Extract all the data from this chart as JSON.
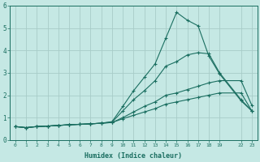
{
  "xlabel": "Humidex (Indice chaleur)",
  "bg_color": "#c5e8e4",
  "grid_color": "#a8ccc8",
  "line_color": "#1a6e60",
  "ylim": [
    0,
    6
  ],
  "yticks": [
    0,
    1,
    2,
    3,
    4,
    5,
    6
  ],
  "x_positions": [
    0,
    1,
    2,
    3,
    4,
    5,
    6,
    7,
    8,
    9,
    10,
    11,
    12,
    13,
    14,
    15,
    16,
    17,
    18,
    19,
    21,
    22
  ],
  "x_labels": [
    "0",
    "1",
    "2",
    "3",
    "4",
    "5",
    "6",
    "7",
    "8",
    "9",
    "10",
    "11",
    "12",
    "13",
    "14",
    "15",
    "16",
    "17",
    "18",
    "19",
    "22",
    "23"
  ],
  "line1_y": [
    0.6,
    0.55,
    0.6,
    0.62,
    0.65,
    0.68,
    0.7,
    0.72,
    0.75,
    0.78,
    0.95,
    1.1,
    1.25,
    1.4,
    1.6,
    1.7,
    1.8,
    1.9,
    2.0,
    2.1,
    2.1,
    1.3
  ],
  "line2_y": [
    0.6,
    0.55,
    0.6,
    0.62,
    0.65,
    0.68,
    0.7,
    0.72,
    0.75,
    0.78,
    1.0,
    1.25,
    1.5,
    1.7,
    2.0,
    2.1,
    2.25,
    2.4,
    2.55,
    2.65,
    2.65,
    1.55
  ],
  "line3_y": [
    0.6,
    0.55,
    0.6,
    0.62,
    0.65,
    0.68,
    0.7,
    0.72,
    0.75,
    0.8,
    1.3,
    1.8,
    2.2,
    2.65,
    3.3,
    3.5,
    3.8,
    3.9,
    3.85,
    3.0,
    1.8,
    1.3
  ],
  "line4_y": [
    0.6,
    0.55,
    0.6,
    0.62,
    0.65,
    0.68,
    0.7,
    0.72,
    0.75,
    0.82,
    1.5,
    2.2,
    2.8,
    3.4,
    4.55,
    5.7,
    5.35,
    5.1,
    3.75,
    2.95,
    1.75,
    1.3
  ]
}
